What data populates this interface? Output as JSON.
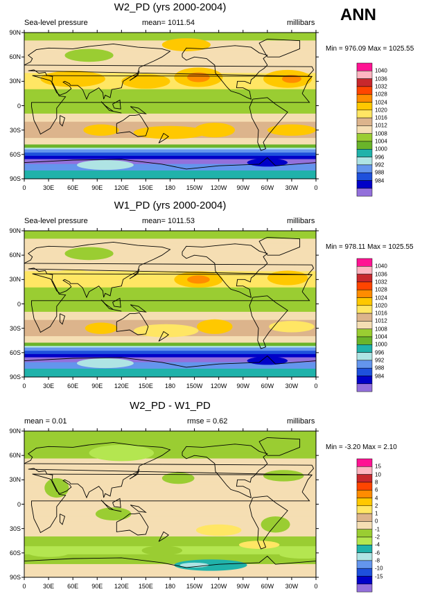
{
  "season_label": "ANN",
  "chart_data": [
    {
      "type": "heatmap",
      "title": "W2_PD (yrs 2000-2004)",
      "variable": "Sea-level pressure",
      "stat_text": "mean= 1011.54",
      "units": "millibars",
      "minmax_text": "Min = 976.09 Max = 1025.55",
      "y_ticks": [
        "90N",
        "60N",
        "30N",
        "0",
        "30S",
        "60S",
        "90S"
      ],
      "x_ticks": [
        "0",
        "30E",
        "60E",
        "90E",
        "120E",
        "150E",
        "180",
        "150W",
        "120W",
        "90W",
        "60W",
        "30W",
        "0"
      ],
      "levels": [
        "1040",
        "1036",
        "1032",
        "1028",
        "1024",
        "1020",
        "1016",
        "1012",
        "1008",
        "1004",
        "1000",
        "996",
        "992",
        "988",
        "984"
      ],
      "level_colors": [
        "#ff1493",
        "#ffb6c1",
        "#c8282d",
        "#ff4500",
        "#ff8c00",
        "#ffc800",
        "#ffe664",
        "#dcb48c",
        "#f5deb3",
        "#9acd32",
        "#6ab42a",
        "#20b2aa",
        "#afe4e4",
        "#6495ed",
        "#1e50dc",
        "#0000c8",
        "#9370db"
      ],
      "field_key": "slp_w2"
    },
    {
      "type": "heatmap",
      "title": "W1_PD (yrs 2000-2004)",
      "variable": "Sea-level pressure",
      "stat_text": "mean= 1011.53",
      "units": "millibars",
      "minmax_text": "Min = 978.11 Max = 1025.55",
      "y_ticks": [
        "90N",
        "60N",
        "30N",
        "0",
        "30S",
        "60S",
        "90S"
      ],
      "x_ticks": [
        "0",
        "30E",
        "60E",
        "90E",
        "120E",
        "150E",
        "180",
        "150W",
        "120W",
        "90W",
        "60W",
        "30W",
        "0"
      ],
      "levels": [
        "1040",
        "1036",
        "1032",
        "1028",
        "1024",
        "1020",
        "1016",
        "1012",
        "1008",
        "1004",
        "1000",
        "996",
        "992",
        "988",
        "984"
      ],
      "level_colors": [
        "#ff1493",
        "#ffb6c1",
        "#c8282d",
        "#ff4500",
        "#ff8c00",
        "#ffc800",
        "#ffe664",
        "#dcb48c",
        "#f5deb3",
        "#9acd32",
        "#6ab42a",
        "#20b2aa",
        "#afe4e4",
        "#6495ed",
        "#1e50dc",
        "#0000c8",
        "#9370db"
      ],
      "field_key": "slp_w1"
    },
    {
      "type": "heatmap",
      "title": "W2_PD - W1_PD",
      "variable": "mean =  0.01",
      "stat_text": "rmse =  0.62",
      "units": "millibars",
      "minmax_text": "Min = -3.20 Max =  2.10",
      "y_ticks": [
        "90N",
        "60N",
        "30N",
        "0",
        "30S",
        "60S",
        "90S"
      ],
      "x_ticks": [
        "0",
        "30E",
        "60E",
        "90E",
        "120E",
        "150E",
        "180",
        "150W",
        "120W",
        "90W",
        "60W",
        "30W",
        "0"
      ],
      "levels": [
        "15",
        "10",
        "8",
        "6",
        "4",
        "2",
        "1",
        "0",
        "-1",
        "-2",
        "-4",
        "-6",
        "-8",
        "-10",
        "-15"
      ],
      "level_colors": [
        "#ff1493",
        "#ffb6c1",
        "#c8282d",
        "#ff4500",
        "#ff8c00",
        "#ffc800",
        "#ffe664",
        "#dcb48c",
        "#f5deb3",
        "#9acd32",
        "#b4e650",
        "#20b2aa",
        "#afe4e4",
        "#6495ed",
        "#1e50dc",
        "#0000c8",
        "#9370db"
      ],
      "field_key": "diff"
    }
  ]
}
